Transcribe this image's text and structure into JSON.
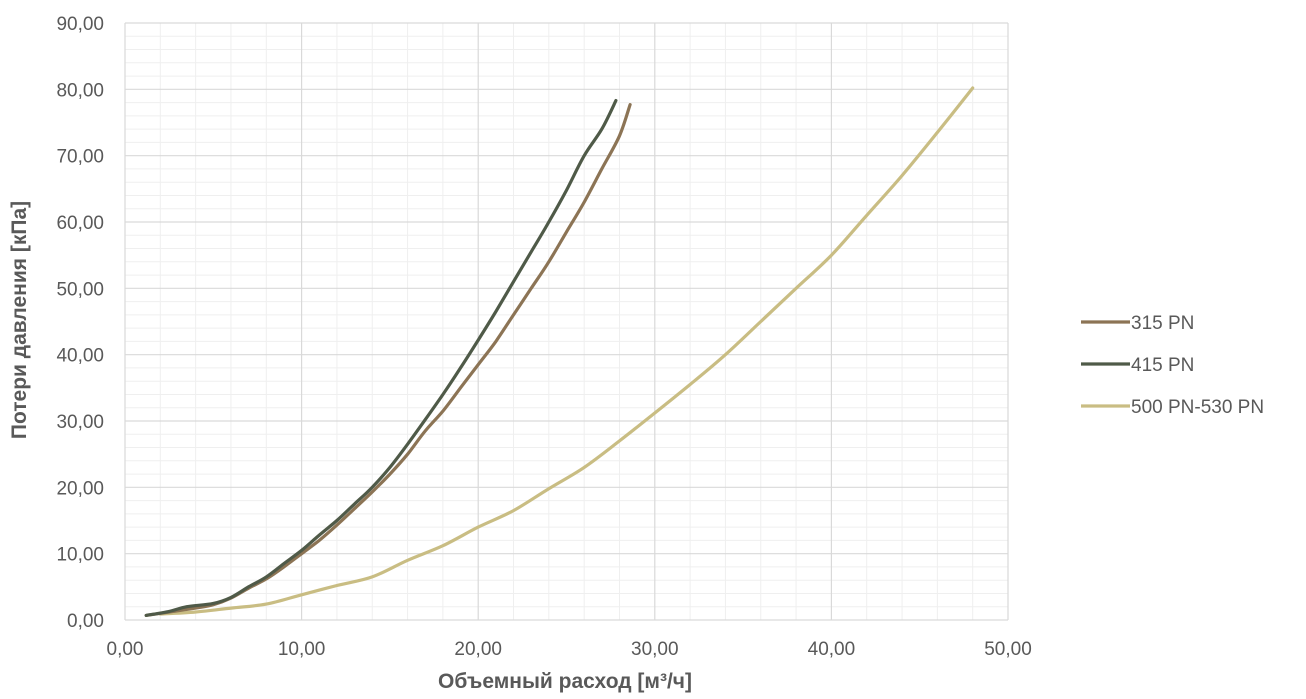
{
  "chart_data": {
    "type": "line",
    "xlabel": "Объемный расход [м³/ч]",
    "ylabel": "Потери давления [кПа]",
    "xlim": [
      0,
      50
    ],
    "ylim": [
      0,
      90
    ],
    "x_ticks": [
      "0,00",
      "10,00",
      "20,00",
      "30,00",
      "40,00",
      "50,00"
    ],
    "y_ticks": [
      "0,00",
      "10,00",
      "20,00",
      "30,00",
      "40,00",
      "50,00",
      "60,00",
      "70,00",
      "80,00",
      "90,00"
    ],
    "grid": "major and minor",
    "legend_position": "right",
    "series": [
      {
        "name": "315 PN",
        "color": "#8c7455",
        "points": [
          [
            1.2,
            0.7
          ],
          [
            2.5,
            1.2
          ],
          [
            4,
            1.8
          ],
          [
            5,
            2.3
          ],
          [
            6,
            3.3
          ],
          [
            7,
            4.8
          ],
          [
            8,
            6.2
          ],
          [
            9,
            8.0
          ],
          [
            10,
            10.0
          ],
          [
            11,
            12.0
          ],
          [
            12,
            14.3
          ],
          [
            13,
            16.8
          ],
          [
            14,
            19.3
          ],
          [
            15,
            22.0
          ],
          [
            16,
            25.0
          ],
          [
            17,
            28.5
          ],
          [
            18,
            31.5
          ],
          [
            19,
            35.0
          ],
          [
            20,
            38.5
          ],
          [
            21,
            42.0
          ],
          [
            22,
            46.0
          ],
          [
            23,
            50.0
          ],
          [
            24,
            54.0
          ],
          [
            25,
            58.5
          ],
          [
            26,
            63.0
          ],
          [
            27,
            68.0
          ],
          [
            28,
            73.0
          ],
          [
            28.6,
            77.7
          ]
        ]
      },
      {
        "name": "415 PN",
        "color": "#4f5a48",
        "points": [
          [
            1.2,
            0.7
          ],
          [
            2.5,
            1.3
          ],
          [
            3.5,
            2.0
          ],
          [
            5,
            2.5
          ],
          [
            6,
            3.4
          ],
          [
            7,
            5.0
          ],
          [
            8,
            6.5
          ],
          [
            9,
            8.5
          ],
          [
            10,
            10.5
          ],
          [
            11,
            12.8
          ],
          [
            12,
            15.0
          ],
          [
            13,
            17.5
          ],
          [
            14,
            20.0
          ],
          [
            15,
            23.0
          ],
          [
            16,
            26.5
          ],
          [
            17,
            30.2
          ],
          [
            18,
            34.0
          ],
          [
            19,
            38.0
          ],
          [
            20,
            42.2
          ],
          [
            21,
            46.5
          ],
          [
            22,
            51.0
          ],
          [
            23,
            55.5
          ],
          [
            24,
            60.0
          ],
          [
            25,
            64.8
          ],
          [
            26,
            70.0
          ],
          [
            27,
            74.0
          ],
          [
            27.8,
            78.3
          ]
        ]
      },
      {
        "name": "500 PN-530 PN",
        "color": "#c9bd83",
        "points": [
          [
            2,
            0.9
          ],
          [
            4,
            1.2
          ],
          [
            6,
            1.8
          ],
          [
            8,
            2.4
          ],
          [
            10,
            3.8
          ],
          [
            12,
            5.2
          ],
          [
            14,
            6.5
          ],
          [
            16,
            9.0
          ],
          [
            18,
            11.2
          ],
          [
            20,
            14.0
          ],
          [
            22,
            16.5
          ],
          [
            24,
            19.8
          ],
          [
            26,
            23.0
          ],
          [
            28,
            27.0
          ],
          [
            30,
            31.2
          ],
          [
            32,
            35.5
          ],
          [
            34,
            40.0
          ],
          [
            36,
            45.0
          ],
          [
            38,
            50.0
          ],
          [
            40,
            55.0
          ],
          [
            42,
            61.0
          ],
          [
            44,
            67.0
          ],
          [
            46,
            73.5
          ],
          [
            48,
            80.2
          ]
        ]
      }
    ]
  }
}
